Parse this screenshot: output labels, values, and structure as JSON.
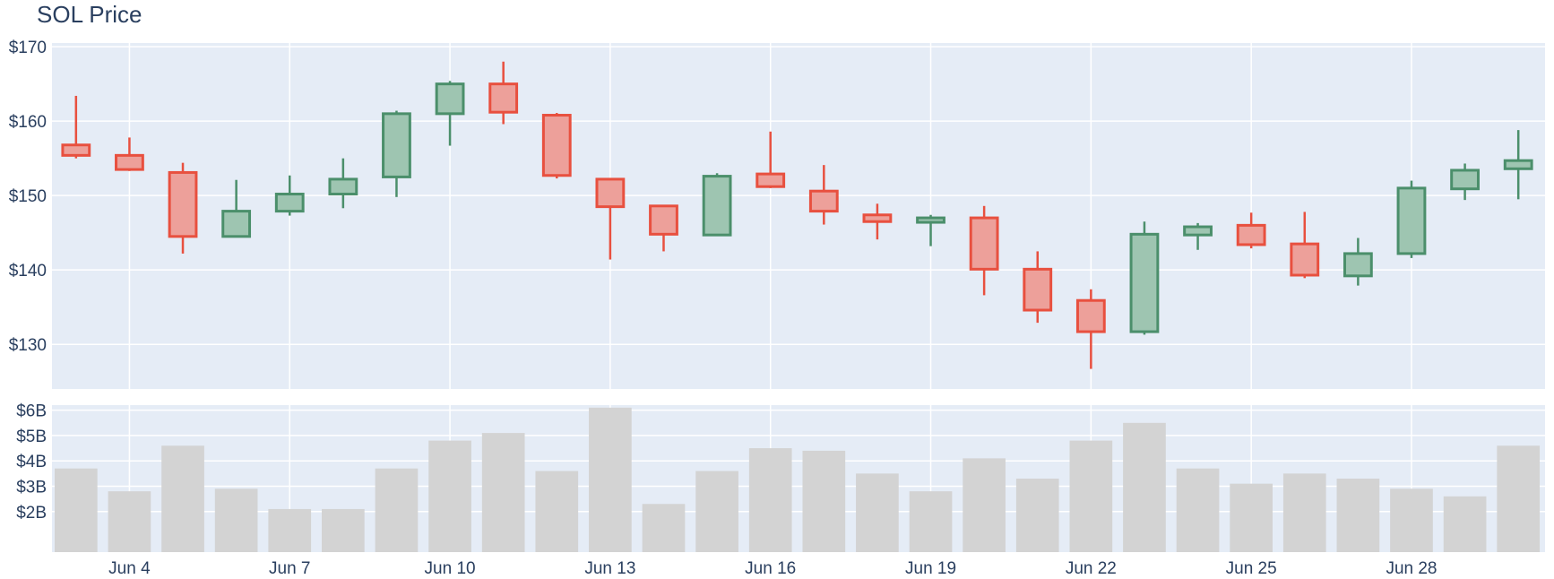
{
  "chart_data": {
    "type": "candlestick",
    "title": "SOL Price",
    "x_tick_labels": [
      "Jun 4",
      "Jun 7",
      "Jun 10",
      "Jun 13",
      "Jun 16",
      "Jun 19",
      "Jun 22",
      "Jun 25",
      "Jun 28"
    ],
    "x_tick_days": [
      4,
      7,
      10,
      13,
      16,
      19,
      22,
      25,
      28
    ],
    "x_range_days": [
      2.55,
      30.5
    ],
    "price_axis": {
      "range": [
        124,
        170.5
      ],
      "ticks": [
        130,
        140,
        150,
        160,
        170
      ],
      "tick_labels": [
        "$130",
        "$140",
        "$150",
        "$160",
        "$170"
      ]
    },
    "volume_axis": {
      "range": [
        0.4,
        6.2
      ],
      "ticks": [
        2,
        3,
        4,
        5,
        6
      ],
      "tick_labels": [
        "$2B",
        "$3B",
        "$4B",
        "$5B",
        "$6B"
      ]
    },
    "colors": {
      "increasing_line": "#4b8f6b",
      "increasing_fill": "#9ec5b1",
      "decreasing_line": "#e8503f",
      "decreasing_fill": "#eda09a",
      "volume_bar": "#d3d3d3",
      "plot_background": "#e5ecf6",
      "grid": "#ffffff"
    },
    "candles": [
      {
        "date": "Jun 3",
        "open": 156.8,
        "high": 163.4,
        "low": 155.0,
        "close": 155.4
      },
      {
        "date": "Jun 4",
        "open": 155.4,
        "high": 157.8,
        "low": 153.3,
        "close": 153.5
      },
      {
        "date": "Jun 5",
        "open": 153.1,
        "high": 154.4,
        "low": 142.2,
        "close": 144.5
      },
      {
        "date": "Jun 6",
        "open": 144.5,
        "high": 152.1,
        "low": 144.4,
        "close": 147.9
      },
      {
        "date": "Jun 7",
        "open": 147.9,
        "high": 152.7,
        "low": 147.3,
        "close": 150.2
      },
      {
        "date": "Jun 8",
        "open": 150.2,
        "high": 155.0,
        "low": 148.3,
        "close": 152.2
      },
      {
        "date": "Jun 9",
        "open": 152.5,
        "high": 161.4,
        "low": 149.8,
        "close": 161.0
      },
      {
        "date": "Jun 10",
        "open": 161.0,
        "high": 165.4,
        "low": 156.7,
        "close": 165.0
      },
      {
        "date": "Jun 11",
        "open": 165.0,
        "high": 168.0,
        "low": 159.6,
        "close": 161.2
      },
      {
        "date": "Jun 12",
        "open": 160.8,
        "high": 161.1,
        "low": 152.3,
        "close": 152.7
      },
      {
        "date": "Jun 13",
        "open": 152.2,
        "high": 152.2,
        "low": 141.4,
        "close": 148.5
      },
      {
        "date": "Jun 14",
        "open": 148.6,
        "high": 148.6,
        "low": 142.5,
        "close": 144.8
      },
      {
        "date": "Jun 15",
        "open": 144.7,
        "high": 153.0,
        "low": 144.7,
        "close": 152.6
      },
      {
        "date": "Jun 16",
        "open": 152.9,
        "high": 158.6,
        "low": 151.0,
        "close": 151.2
      },
      {
        "date": "Jun 17",
        "open": 150.6,
        "high": 154.1,
        "low": 146.1,
        "close": 147.9
      },
      {
        "date": "Jun 18",
        "open": 147.4,
        "high": 148.9,
        "low": 144.1,
        "close": 146.5
      },
      {
        "date": "Jun 19",
        "open": 146.4,
        "high": 147.4,
        "low": 143.2,
        "close": 147.0
      },
      {
        "date": "Jun 20",
        "open": 147.0,
        "high": 148.6,
        "low": 136.6,
        "close": 140.1
      },
      {
        "date": "Jun 21",
        "open": 140.1,
        "high": 142.5,
        "low": 132.9,
        "close": 134.6
      },
      {
        "date": "Jun 22",
        "open": 135.9,
        "high": 137.4,
        "low": 126.7,
        "close": 131.7
      },
      {
        "date": "Jun 23",
        "open": 131.7,
        "high": 146.5,
        "low": 131.3,
        "close": 144.8
      },
      {
        "date": "Jun 24",
        "open": 144.7,
        "high": 146.3,
        "low": 142.7,
        "close": 145.8
      },
      {
        "date": "Jun 25",
        "open": 146.0,
        "high": 147.7,
        "low": 142.9,
        "close": 143.4
      },
      {
        "date": "Jun 26",
        "open": 143.5,
        "high": 147.8,
        "low": 138.9,
        "close": 139.3
      },
      {
        "date": "Jun 27",
        "open": 139.2,
        "high": 144.3,
        "low": 137.9,
        "close": 142.2
      },
      {
        "date": "Jun 28",
        "open": 142.2,
        "high": 152.0,
        "low": 141.6,
        "close": 151.0
      },
      {
        "date": "Jun 29",
        "open": 150.9,
        "high": 154.3,
        "low": 149.4,
        "close": 153.4
      },
      {
        "date": "Jun 30",
        "open": 153.6,
        "high": 158.8,
        "low": 149.5,
        "close": 154.7
      }
    ],
    "volumes": [
      3.7,
      2.8,
      4.6,
      2.9,
      2.1,
      2.1,
      3.7,
      4.8,
      5.1,
      3.6,
      6.1,
      2.3,
      3.6,
      4.5,
      4.4,
      3.5,
      2.8,
      4.1,
      3.3,
      4.8,
      5.5,
      3.7,
      3.1,
      3.5,
      3.3,
      2.9,
      2.6,
      4.6
    ]
  }
}
